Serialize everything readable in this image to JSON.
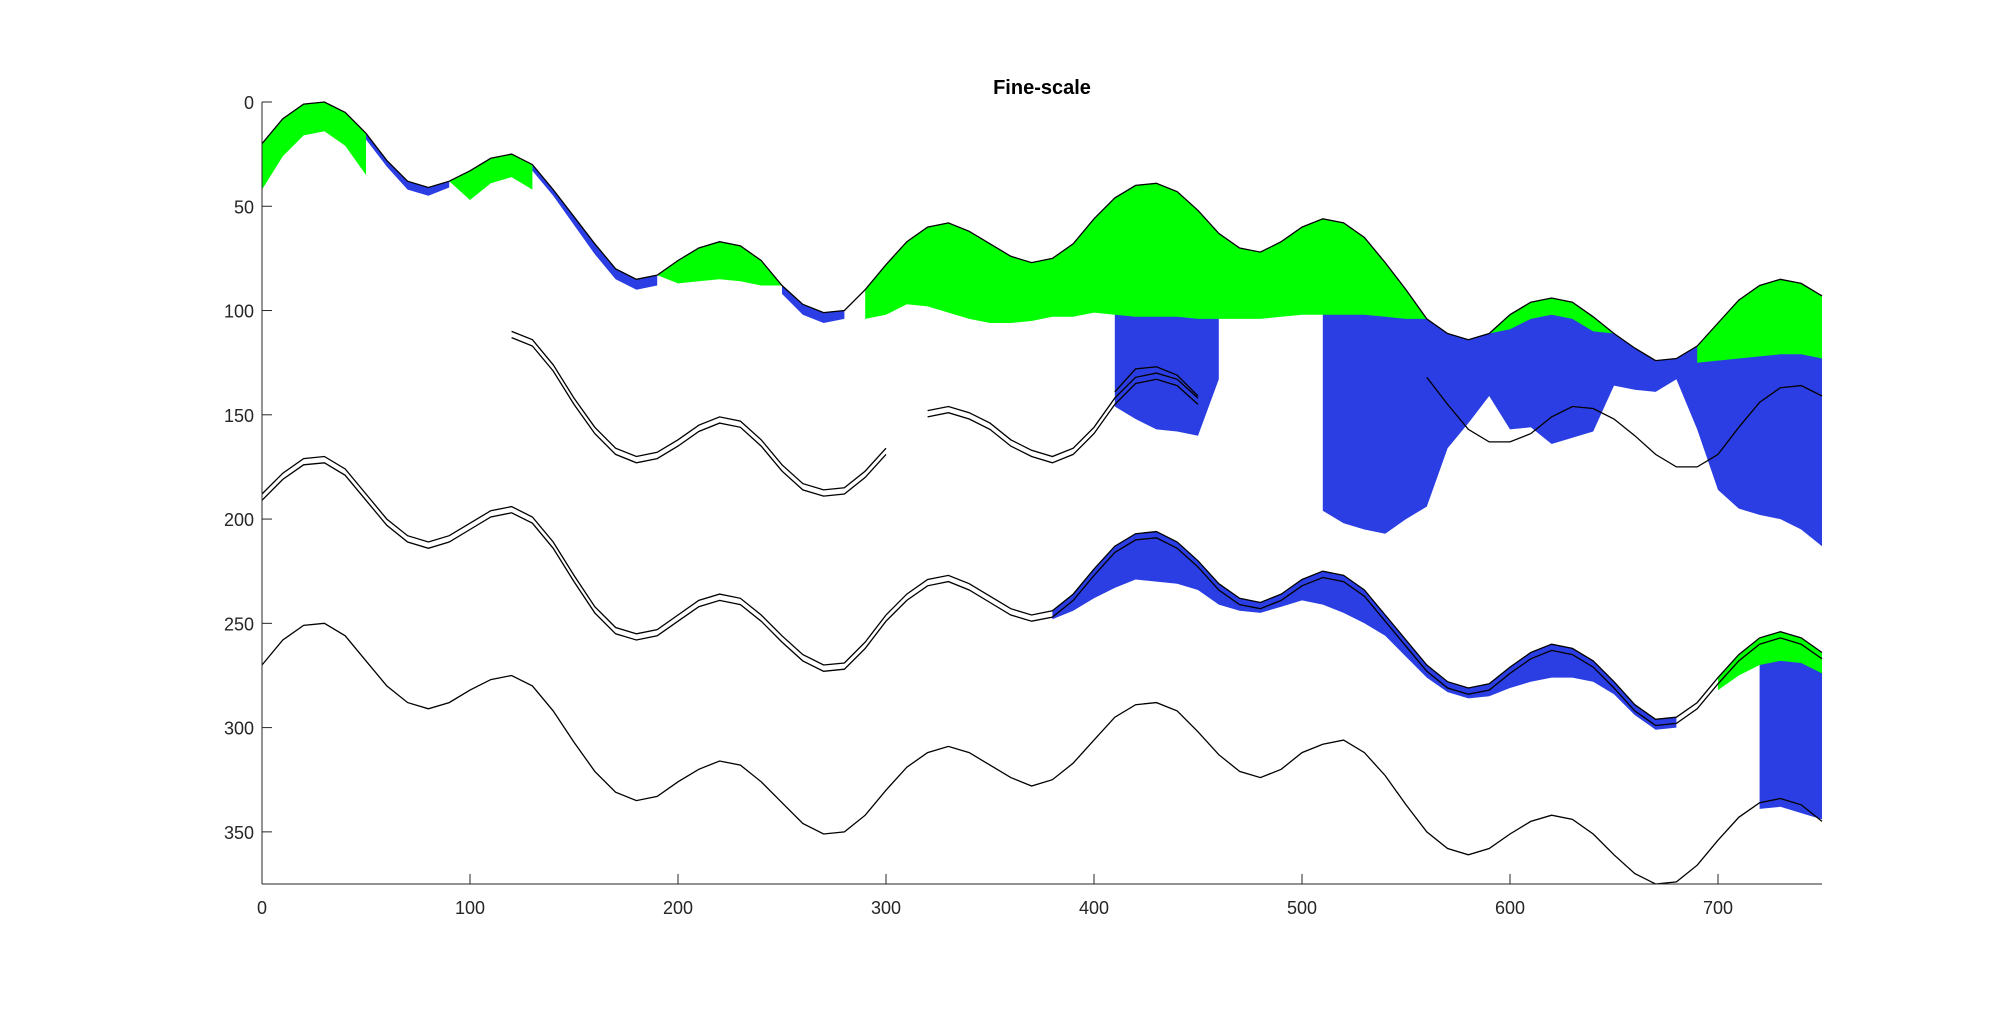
{
  "chart_data": {
    "type": "area",
    "title": "Fine-scale",
    "xlabel": "",
    "ylabel": "",
    "xlim": [
      0,
      750
    ],
    "ylim": [
      0,
      375
    ],
    "y_reversed": true,
    "grid": false,
    "xticks": [
      0,
      100,
      200,
      300,
      400,
      500,
      600,
      700
    ],
    "yticks": [
      0,
      50,
      100,
      150,
      200,
      250,
      300,
      350
    ],
    "colors": {
      "green": "#00ff00",
      "blue": "#2b3ee3",
      "line": "#000000"
    },
    "horizons": [
      {
        "x": [
          0,
          10,
          20,
          30,
          40,
          50,
          60,
          70,
          80,
          90,
          100,
          110,
          120,
          130,
          140,
          150,
          160,
          170,
          180,
          190,
          200,
          210,
          220,
          230,
          240,
          250,
          260,
          270,
          280,
          290,
          300,
          310,
          320,
          330,
          340,
          350,
          360,
          370,
          380,
          390,
          400,
          410,
          420,
          430,
          440,
          450,
          460,
          470,
          480,
          490,
          500,
          510,
          520,
          530,
          540,
          550,
          560,
          570,
          580,
          590,
          600,
          610,
          620,
          630,
          640,
          650,
          660,
          670,
          680,
          690,
          700,
          710,
          720,
          730,
          740,
          750
        ],
        "y": [
          20,
          8,
          1,
          0,
          5,
          15,
          28,
          38,
          41,
          38,
          33,
          27,
          25,
          30,
          42,
          55,
          68,
          80,
          85,
          83,
          76,
          70,
          67,
          69,
          76,
          88,
          97,
          101,
          100,
          90,
          78,
          67,
          60,
          58,
          62,
          68,
          74,
          77,
          75,
          68,
          56,
          46,
          40,
          39,
          43,
          52,
          63,
          70,
          72,
          67,
          60,
          56,
          58,
          65,
          77,
          90,
          104,
          111,
          114,
          111,
          102,
          96,
          94,
          96,
          103,
          111,
          118,
          124,
          123,
          117,
          106,
          95,
          88,
          85,
          87,
          93
        ]
      },
      {
        "x": [
          120,
          130,
          140,
          150,
          160,
          170,
          180,
          190,
          200,
          210,
          220,
          230,
          240,
          250,
          260,
          270,
          280,
          290,
          300
        ],
        "y": [
          110,
          114,
          126,
          142,
          156,
          166,
          170,
          168,
          162,
          155,
          151,
          153,
          162,
          174,
          183,
          186,
          185,
          177,
          166
        ]
      },
      {
        "x": [
          320,
          330,
          340,
          350,
          360,
          370,
          380,
          390,
          400,
          410,
          420,
          430,
          440,
          450
        ],
        "y": [
          148,
          146,
          149,
          154,
          162,
          167,
          170,
          166,
          156,
          142,
          132,
          130,
          133,
          142
        ]
      },
      {
        "x": [
          0,
          10,
          20,
          30,
          40,
          50,
          60,
          70,
          80,
          90,
          100,
          110,
          120,
          130,
          140,
          150,
          160,
          170,
          180,
          190,
          200,
          210,
          220,
          230,
          240,
          250,
          260,
          270,
          280,
          290,
          300,
          310,
          320,
          330,
          340,
          350,
          360,
          370,
          380,
          390,
          400,
          410,
          420,
          430,
          440,
          450,
          460,
          470,
          480,
          490,
          500,
          510,
          520,
          530,
          540,
          550,
          560,
          570,
          580,
          590,
          600,
          610,
          620,
          630,
          640,
          650,
          660,
          670,
          680,
          690,
          700,
          710,
          720,
          730,
          740,
          750
        ],
        "y": [
          188,
          178,
          171,
          170,
          176,
          188,
          200,
          208,
          211,
          208,
          202,
          196,
          194,
          199,
          211,
          227,
          242,
          252,
          255,
          253,
          246,
          239,
          236,
          238,
          246,
          256,
          265,
          270,
          269,
          259,
          246,
          236,
          229,
          227,
          231,
          237,
          243,
          246,
          244,
          236,
          224,
          213,
          207,
          206,
          211,
          220,
          231,
          238,
          240,
          236,
          229,
          225,
          227,
          234,
          246,
          258,
          270,
          278,
          281,
          279,
          271,
          264,
          260,
          262,
          268,
          278,
          289,
          296,
          295,
          288,
          276,
          265,
          257,
          254,
          257,
          264
        ]
      },
      {
        "x": [
          0,
          10,
          20,
          30,
          40,
          50,
          60,
          70,
          80,
          90,
          100,
          110,
          120,
          130,
          140,
          150,
          160,
          170,
          180,
          190,
          200,
          210,
          220,
          230,
          240,
          250,
          260,
          270,
          280,
          290,
          300,
          310,
          320,
          330,
          340,
          350,
          360,
          370,
          380,
          390,
          400,
          410,
          420,
          430,
          440,
          450,
          460,
          470,
          480,
          490,
          500,
          510,
          520,
          530,
          540,
          550,
          560,
          570,
          580,
          590,
          600,
          610,
          620,
          630,
          640,
          650,
          660,
          670,
          680,
          690,
          700,
          710,
          720,
          730,
          740,
          750
        ],
        "y": [
          270,
          258,
          251,
          250,
          256,
          268,
          280,
          288,
          291,
          288,
          282,
          277,
          275,
          280,
          292,
          307,
          321,
          331,
          335,
          333,
          326,
          320,
          316,
          318,
          326,
          336,
          346,
          351,
          350,
          342,
          330,
          319,
          312,
          309,
          312,
          318,
          324,
          328,
          325,
          317,
          306,
          295,
          289,
          288,
          292,
          302,
          313,
          321,
          324,
          320,
          312,
          308,
          306,
          312,
          323,
          337,
          350,
          358,
          361,
          358,
          351,
          345,
          342,
          344,
          351,
          361,
          370,
          375,
          374,
          366,
          354,
          343,
          336,
          334,
          337,
          345
        ]
      }
    ],
    "double_line_offset": 3,
    "double_lines": [
      {
        "x": [
          560,
          570,
          580,
          590,
          600,
          610,
          620,
          630,
          640,
          650,
          660,
          670,
          680,
          690,
          700,
          710,
          720,
          730,
          740,
          750
        ],
        "y": [
          129,
          142,
          154,
          160,
          160,
          156,
          148,
          143,
          144,
          149,
          157,
          166,
          172,
          172,
          166,
          153,
          141,
          134,
          133,
          138
        ]
      },
      {
        "x": [
          410,
          420,
          430,
          440,
          450
        ],
        "y": [
          136,
          125,
          124,
          128,
          138
        ]
      }
    ],
    "green_fills": [
      {
        "x": [
          0,
          10,
          20,
          30,
          40,
          50
        ],
        "top_horizon": 0,
        "thickness": [
          22,
          18,
          15,
          14,
          16,
          20
        ]
      },
      {
        "x": [
          90,
          100,
          110,
          120,
          130
        ],
        "top_horizon": 0,
        "thickness": [
          0,
          14,
          12,
          11,
          12
        ]
      },
      {
        "x": [
          190,
          200,
          210,
          220,
          230,
          240,
          250
        ],
        "top_horizon": 0,
        "thickness": [
          0,
          11,
          16,
          18,
          17,
          12,
          0
        ]
      },
      {
        "x": [
          290,
          300,
          310,
          320,
          330,
          340,
          350,
          360,
          370,
          380,
          390,
          400,
          410,
          420,
          430,
          440,
          450,
          460,
          470,
          480,
          490,
          500,
          510,
          520,
          530,
          540,
          550,
          560
        ],
        "top_horizon": 0,
        "thickness": [
          14,
          24,
          30,
          38,
          43,
          42,
          38,
          32,
          28,
          28,
          35,
          45,
          56,
          63,
          64,
          60,
          52,
          41,
          34,
          32,
          36,
          42,
          46,
          44,
          37,
          26,
          14,
          0
        ]
      },
      {
        "x": [
          590,
          600,
          610,
          620,
          630,
          640,
          650
        ],
        "top_horizon": 0,
        "thickness": [
          0,
          7,
          8,
          8,
          8,
          7,
          0
        ]
      },
      {
        "x": [
          690,
          700,
          710,
          720,
          730,
          740,
          750
        ],
        "top_horizon": 0,
        "thickness": [
          8,
          18,
          28,
          34,
          36,
          34,
          30
        ]
      },
      {
        "x": [
          700,
          710,
          720,
          730,
          740,
          750
        ],
        "top_horizon": 3,
        "thickness": [
          6,
          10,
          13,
          14,
          12,
          10
        ]
      }
    ],
    "blue_fills": [
      {
        "x": [
          50,
          60,
          70,
          80,
          90
        ],
        "top_horizon": 0,
        "thickness": [
          3,
          3,
          4,
          4,
          3
        ]
      },
      {
        "x": [
          130,
          140,
          150,
          160,
          170,
          180,
          190
        ],
        "top_horizon": 0,
        "thickness": [
          3,
          3,
          4,
          5,
          5,
          5,
          5
        ]
      },
      {
        "x": [
          250,
          260,
          270,
          280
        ],
        "top_horizon": 0,
        "thickness": [
          4,
          5,
          5,
          4
        ]
      },
      {
        "x": [
          410,
          420,
          430,
          440,
          450,
          460
        ],
        "top_horizon": 0,
        "thickness": [
          100,
          112,
          118,
          115,
          108,
          70
        ]
      },
      {
        "x": [
          510,
          520,
          530,
          540,
          550,
          560,
          570,
          580,
          590,
          600,
          610,
          620,
          630,
          640,
          650,
          660,
          670,
          680,
          690,
          700,
          710,
          720,
          730,
          740,
          750
        ],
        "top_horizon": 0,
        "thickness": [
          140,
          144,
          140,
          130,
          110,
          90,
          55,
          40,
          30,
          55,
          60,
          70,
          65,
          55,
          25,
          20,
          15,
          10,
          40,
          80,
          100,
          110,
          115,
          118,
          120
        ]
      },
      {
        "x": [
          380,
          390,
          400,
          410,
          420,
          430,
          440,
          450,
          460,
          470,
          480,
          490,
          500,
          510,
          520,
          530,
          540,
          550,
          560,
          570,
          580,
          590,
          600,
          610,
          620,
          630,
          640,
          650,
          660,
          670,
          680
        ],
        "top_horizon": 3,
        "thickness": [
          4,
          8,
          14,
          20,
          22,
          24,
          20,
          14,
          10,
          6,
          5,
          6,
          10,
          16,
          18,
          16,
          10,
          8,
          6,
          5,
          5,
          6,
          10,
          14,
          16,
          14,
          10,
          6,
          5,
          5,
          5
        ]
      },
      {
        "x": [
          720,
          730,
          740,
          750
        ],
        "top_horizon": 3,
        "thickness": [
          82,
          84,
          84,
          80
        ]
      }
    ]
  }
}
